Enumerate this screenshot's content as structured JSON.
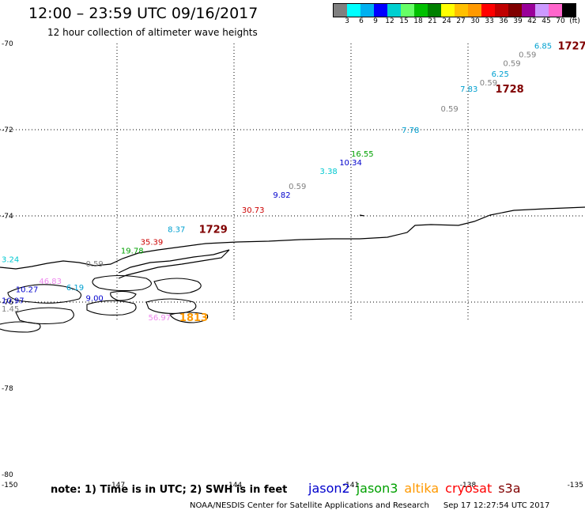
{
  "header": {
    "title": "12:00 – 23:59 UTC 09/16/2017",
    "subtitle": "12 hour collection of altimeter wave heights"
  },
  "colorbar": {
    "colors": [
      "#808080",
      "#00ffff",
      "#00b0f0",
      "#0000ff",
      "#00d0d0",
      "#66ff66",
      "#00c000",
      "#008000",
      "#ffff00",
      "#ffc000",
      "#ff9900",
      "#ff0000",
      "#c00000",
      "#800000",
      "#990099",
      "#cc99ff",
      "#ff66cc",
      "#000000"
    ],
    "labels": [
      "3",
      "6",
      "9",
      "12",
      "15",
      "18",
      "21",
      "24",
      "27",
      "30",
      "33",
      "36",
      "39",
      "42",
      "45",
      "70",
      "(ft)"
    ]
  },
  "map": {
    "lat_labels": [
      "-70",
      "-72",
      "-74",
      "-76",
      "-78",
      "-80"
    ],
    "lon_labels": [
      "-150",
      "-147",
      "-144",
      "-141",
      "-138",
      "-135"
    ]
  },
  "swh_points": [
    {
      "text": "6.85",
      "color": "#00a0d0",
      "lon": -136.3,
      "lat": -70.05
    },
    {
      "text": "0.59",
      "color": "#808080",
      "lon": -136.7,
      "lat": -70.25
    },
    {
      "text": "0.59",
      "color": "#808080",
      "lon": -137.1,
      "lat": -70.45
    },
    {
      "text": "6.25",
      "color": "#00a0d0",
      "lon": -137.4,
      "lat": -70.7
    },
    {
      "text": "0.59",
      "color": "#808080",
      "lon": -137.7,
      "lat": -70.9
    },
    {
      "text": "7.83",
      "color": "#00a0d0",
      "lon": -138.2,
      "lat": -71.05
    },
    {
      "text": "0.59",
      "color": "#808080",
      "lon": -138.7,
      "lat": -71.5
    },
    {
      "text": "7.78",
      "color": "#00a0d0",
      "lon": -139.7,
      "lat": -72.0
    },
    {
      "text": "16.55",
      "color": "#00a000",
      "lon": -141.0,
      "lat": -72.55
    },
    {
      "text": "10.34",
      "color": "#0000cc",
      "lon": -141.3,
      "lat": -72.75
    },
    {
      "text": "3.38",
      "color": "#00c8d0",
      "lon": -141.8,
      "lat": -72.95
    },
    {
      "text": "0.59",
      "color": "#808080",
      "lon": -142.6,
      "lat": -73.3
    },
    {
      "text": "9.82",
      "color": "#0000cc",
      "lon": -143.0,
      "lat": -73.5
    },
    {
      "text": "30.73",
      "color": "#cc0000",
      "lon": -143.8,
      "lat": -73.85
    },
    {
      "text": "8.37",
      "color": "#00a0d0",
      "lon": -145.7,
      "lat": -74.3
    },
    {
      "text": "35.39",
      "color": "#cc0000",
      "lon": -146.4,
      "lat": -74.6
    },
    {
      "text": "19.78",
      "color": "#00a000",
      "lon": -146.9,
      "lat": -74.8
    },
    {
      "text": "0.59",
      "color": "#808080",
      "lon": -147.8,
      "lat": -75.1
    },
    {
      "text": "3.24",
      "color": "#00c8d0",
      "lon": -150.8,
      "lat": -75.0
    },
    {
      "text": "46.83",
      "color": "#ee88ee",
      "lon": -149.0,
      "lat": -75.5
    },
    {
      "text": "6.19",
      "color": "#00a0d0",
      "lon": -148.3,
      "lat": -75.65
    },
    {
      "text": "10.27",
      "color": "#0000cc",
      "lon": -149.6,
      "lat": -75.7
    },
    {
      "text": "9.00",
      "color": "#0000cc",
      "lon": -147.8,
      "lat": -75.9
    },
    {
      "text": "10.97",
      "color": "#0000cc",
      "lon": -150.8,
      "lat": -75.95
    },
    {
      "text": "1.45",
      "color": "#808080",
      "lon": -151.2,
      "lat": -76.15
    },
    {
      "text": "56.97",
      "color": "#ee88ee",
      "lon": -146.2,
      "lat": -76.35
    }
  ],
  "pass_labels": [
    {
      "text": "1727",
      "color": "#800000",
      "lon": -135.7,
      "lat": -70.05
    },
    {
      "text": "1728",
      "color": "#800000",
      "lon": -137.3,
      "lat": -71.05
    },
    {
      "text": "1729",
      "color": "#800000",
      "lon": -144.9,
      "lat": -74.3
    },
    {
      "text": "1813",
      "color": "#ff9900",
      "lon": -145.4,
      "lat": -76.35
    }
  ],
  "footer": {
    "note": "note: 1) Time is in UTC; 2) SWH is in feet",
    "satellites": [
      {
        "name": "jason2",
        "color": "#0000cc"
      },
      {
        "name": "jason3",
        "color": "#00a000"
      },
      {
        "name": "altika",
        "color": "#ff9900"
      },
      {
        "name": "cryosat",
        "color": "#ff0000"
      },
      {
        "name": "s3a",
        "color": "#800000"
      }
    ],
    "credit": "NOAA/NESDIS Center for Satellite Applications and Research",
    "timestamp": "Sep 17 12:27:54 UTC 2017"
  }
}
